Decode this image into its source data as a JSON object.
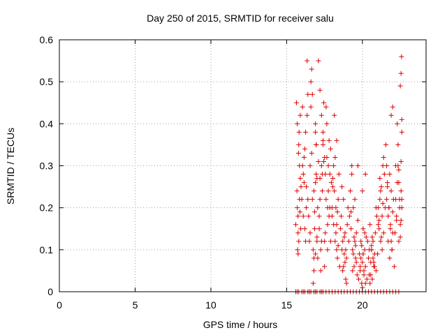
{
  "chart_data": {
    "type": "scatter",
    "title": "Day 250 of 2015, SRMTID for receiver salu",
    "xlabel": "GPS time / hours",
    "ylabel": "SRMTID / TECUs",
    "xlim": [
      0,
      24.2
    ],
    "ylim": [
      0,
      0.6
    ],
    "xticks": [
      0,
      5,
      10,
      15,
      20
    ],
    "yticks": [
      0,
      0.1,
      0.2,
      0.3,
      0.4,
      0.5,
      0.6
    ],
    "xtick_labels": [
      "0",
      "5",
      "10",
      "15",
      "20"
    ],
    "ytick_labels": [
      "0",
      "0.1",
      "0.2",
      "0.3",
      "0.4",
      "0.5",
      "0.6"
    ],
    "grid": true,
    "marker": "+",
    "color": "#dd0000",
    "series": [
      {
        "name": "salu",
        "x": [
          15.6,
          15.65,
          15.7,
          15.75,
          15.8,
          15.85,
          15.9,
          15.95,
          15.7,
          15.8,
          15.75,
          15.85,
          15.9,
          15.72,
          15.78,
          15.82,
          15.88,
          15.93,
          15.68,
          15.76,
          16.0,
          16.05,
          16.1,
          16.15,
          16.2,
          16.25,
          16.3,
          16.35,
          16.4,
          16.1,
          16.2,
          16.3,
          16.25,
          16.15,
          16.35,
          16.05,
          16.4,
          16.45,
          16.5,
          16.55,
          16.6,
          16.65,
          16.7,
          16.75,
          16.8,
          16.85,
          16.9,
          16.95,
          17.0,
          16.7,
          16.8,
          16.9,
          16.6,
          16.75,
          16.85,
          16.95,
          16.65,
          16.55,
          16.9,
          16.8,
          17.0,
          17.05,
          17.1,
          17.15,
          17.2,
          17.25,
          17.3,
          17.35,
          17.4,
          17.45,
          17.1,
          17.2,
          17.3,
          17.15,
          17.25,
          17.35,
          17.05,
          17.4,
          17.2,
          17.3,
          17.5,
          17.55,
          17.6,
          17.65,
          17.7,
          17.75,
          17.8,
          17.85,
          17.9,
          17.95,
          17.6,
          17.7,
          17.8,
          17.65,
          17.75,
          17.55,
          17.85,
          17.9,
          17.5,
          17.7,
          18.0,
          18.05,
          18.1,
          18.15,
          18.2,
          18.25,
          18.3,
          18.35,
          18.4,
          18.45,
          18.1,
          18.2,
          18.3,
          18.15,
          18.25,
          18.35,
          18.05,
          18.4,
          18.5,
          18.55,
          18.6,
          18.65,
          18.7,
          18.75,
          18.8,
          18.85,
          18.9,
          18.95,
          19.0,
          19.05,
          18.7,
          18.8,
          18.9,
          18.75,
          18.85,
          18.65,
          18.95,
          19.1,
          19.15,
          19.2,
          19.25,
          19.3,
          19.35,
          19.4,
          19.45,
          19.5,
          19.55,
          19.6,
          19.65,
          19.7,
          19.3,
          19.4,
          19.5,
          19.35,
          19.45,
          19.55,
          19.25,
          19.6,
          19.75,
          19.8,
          19.85,
          19.9,
          19.95,
          20.0,
          20.05,
          20.1,
          20.15,
          20.2,
          20.25,
          20.3,
          19.9,
          20.0,
          20.1,
          19.95,
          20.05,
          20.15,
          19.85,
          20.2,
          20.35,
          20.4,
          20.45,
          20.5,
          20.55,
          20.6,
          20.65,
          20.7,
          20.75,
          20.8,
          20.85,
          20.9,
          20.5,
          20.6,
          20.7,
          20.55,
          20.65,
          20.75,
          20.45,
          20.8,
          20.95,
          21.0,
          21.05,
          21.1,
          21.15,
          21.2,
          21.25,
          21.3,
          21.35,
          21.4,
          21.45,
          21.5,
          21.1,
          21.2,
          21.3,
          21.15,
          21.25,
          21.35,
          21.05,
          21.4,
          21.55,
          21.6,
          21.65,
          21.7,
          21.75,
          21.8,
          21.85,
          21.9,
          21.95,
          22.0,
          22.05,
          22.1,
          21.7,
          21.8,
          21.9,
          21.75,
          21.85,
          21.95,
          21.65,
          22.0,
          22.15,
          22.2,
          22.25,
          22.3,
          22.35,
          22.4,
          22.45,
          22.5,
          22.55,
          22.6,
          22.3,
          22.4,
          22.5,
          22.35,
          22.45,
          22.55,
          22.25,
          22.6,
          22.58,
          22.55,
          22.5,
          22.6,
          16.9,
          16.95,
          17.0,
          17.4,
          17.45,
          17.5,
          18.0,
          18.3,
          19.7,
          20.0,
          20.2,
          20.6,
          20.9,
          21.6,
          21.9,
          22.0,
          22.2,
          22.4,
          22.55,
          22.6,
          15.6,
          15.8,
          16.0,
          16.2,
          16.4,
          16.6,
          16.8,
          17.0,
          17.2,
          17.4,
          17.6,
          17.8,
          18.0,
          18.2,
          18.4,
          18.6,
          18.8,
          19.0,
          19.2,
          19.4,
          19.6,
          19.8,
          20.0,
          20.2,
          20.4,
          20.6,
          20.8,
          21.0,
          21.2,
          21.4,
          21.6,
          21.8,
          22.0,
          22.2,
          22.4,
          15.7,
          16.1,
          16.5,
          16.9,
          17.3
        ],
        "y": [
          0.16,
          0.45,
          0.2,
          0.18,
          0.12,
          0.3,
          0.42,
          0.25,
          0.4,
          0.35,
          0.14,
          0.22,
          0.27,
          0.1,
          0.33,
          0.38,
          0.19,
          0.15,
          0.24,
          0.09,
          0.22,
          0.3,
          0.18,
          0.26,
          0.34,
          0.12,
          0.2,
          0.42,
          0.47,
          0.28,
          0.15,
          0.25,
          0.38,
          0.32,
          0.55,
          0.44,
          0.22,
          0.18,
          0.12,
          0.3,
          0.5,
          0.53,
          0.47,
          0.1,
          0.08,
          0.15,
          0.26,
          0.35,
          0.12,
          0.22,
          0.05,
          0.38,
          0.44,
          0.02,
          0.19,
          0.28,
          0.33,
          0.14,
          0.09,
          0.24,
          0.13,
          0.2,
          0.31,
          0.15,
          0.22,
          0.05,
          0.12,
          0.28,
          0.38,
          0.45,
          0.55,
          0.48,
          0.3,
          0.18,
          0.1,
          0.24,
          0.08,
          0.35,
          0.27,
          0.42,
          0.32,
          0.28,
          0.22,
          0.4,
          0.16,
          0.3,
          0.36,
          0.2,
          0.12,
          0.26,
          0.44,
          0.1,
          0.18,
          0.32,
          0.24,
          0.14,
          0.28,
          0.34,
          0.06,
          0.2,
          0.18,
          0.25,
          0.3,
          0.42,
          0.12,
          0.2,
          0.36,
          0.08,
          0.22,
          0.28,
          0.16,
          0.32,
          0.1,
          0.24,
          0.14,
          0.19,
          0.27,
          0.11,
          0.06,
          0.15,
          0.18,
          0.1,
          0.12,
          0.06,
          0.09,
          0.14,
          0.03,
          0.08,
          0.16,
          0.2,
          0.05,
          0.13,
          0.1,
          0.22,
          0.07,
          0.25,
          0.02,
          0.12,
          0.18,
          0.24,
          0.15,
          0.28,
          0.1,
          0.2,
          0.06,
          0.12,
          0.08,
          0.14,
          0.04,
          0.17,
          0.3,
          0.09,
          0.22,
          0.05,
          0.13,
          0.11,
          0.19,
          0.07,
          0.03,
          0.09,
          0.05,
          0.12,
          0.02,
          0.07,
          0.15,
          0.04,
          0.1,
          0.06,
          0.13,
          0.03,
          0.08,
          0.01,
          0.05,
          0.11,
          0.09,
          0.14,
          0.06,
          0.02,
          0.12,
          0.08,
          0.04,
          0.16,
          0.07,
          0.1,
          0.03,
          0.12,
          0.06,
          0.09,
          0.14,
          0.05,
          0.02,
          0.11,
          0.08,
          0.04,
          0.13,
          0.07,
          0.1,
          0.06,
          0.18,
          0.09,
          0.2,
          0.15,
          0.22,
          0.12,
          0.25,
          0.18,
          0.3,
          0.14,
          0.28,
          0.2,
          0.17,
          0.24,
          0.1,
          0.27,
          0.13,
          0.21,
          0.16,
          0.32,
          0.35,
          0.3,
          0.26,
          0.12,
          0.2,
          0.08,
          0.16,
          0.24,
          0.1,
          0.14,
          0.22,
          0.06,
          0.18,
          0.28,
          0.12,
          0.2,
          0.15,
          0.1,
          0.25,
          0.19,
          0.14,
          0.22,
          0.18,
          0.26,
          0.3,
          0.12,
          0.2,
          0.16,
          0.24,
          0.38,
          0.4,
          0.29,
          0.13,
          0.35,
          0.22,
          0.31,
          0.17,
          0.2,
          0.56,
          0.52,
          0.49,
          0.41,
          0.4,
          0.35,
          0.27,
          0.36,
          0.31,
          0.12,
          0.2,
          0.16,
          0.3,
          0.24,
          0.28,
          0.1,
          0.2,
          0.22,
          0.42,
          0.44,
          0.3,
          0.26,
          0.17,
          0.22,
          0.0,
          0.0,
          0.0,
          0.0,
          0.0,
          0.0,
          0.0,
          0.0,
          0.0,
          0.0,
          0.0,
          0.0,
          0.0,
          0.0,
          0.0,
          0.0,
          0.0,
          0.0,
          0.0,
          0.0,
          0.0,
          0.0,
          0.0,
          0.0,
          0.0,
          0.0,
          0.0,
          0.0,
          0.0,
          0.0,
          0.0,
          0.0,
          0.0,
          0.0,
          0.0,
          0.0,
          0.0,
          0.0,
          0.0,
          0.0
        ]
      }
    ]
  }
}
